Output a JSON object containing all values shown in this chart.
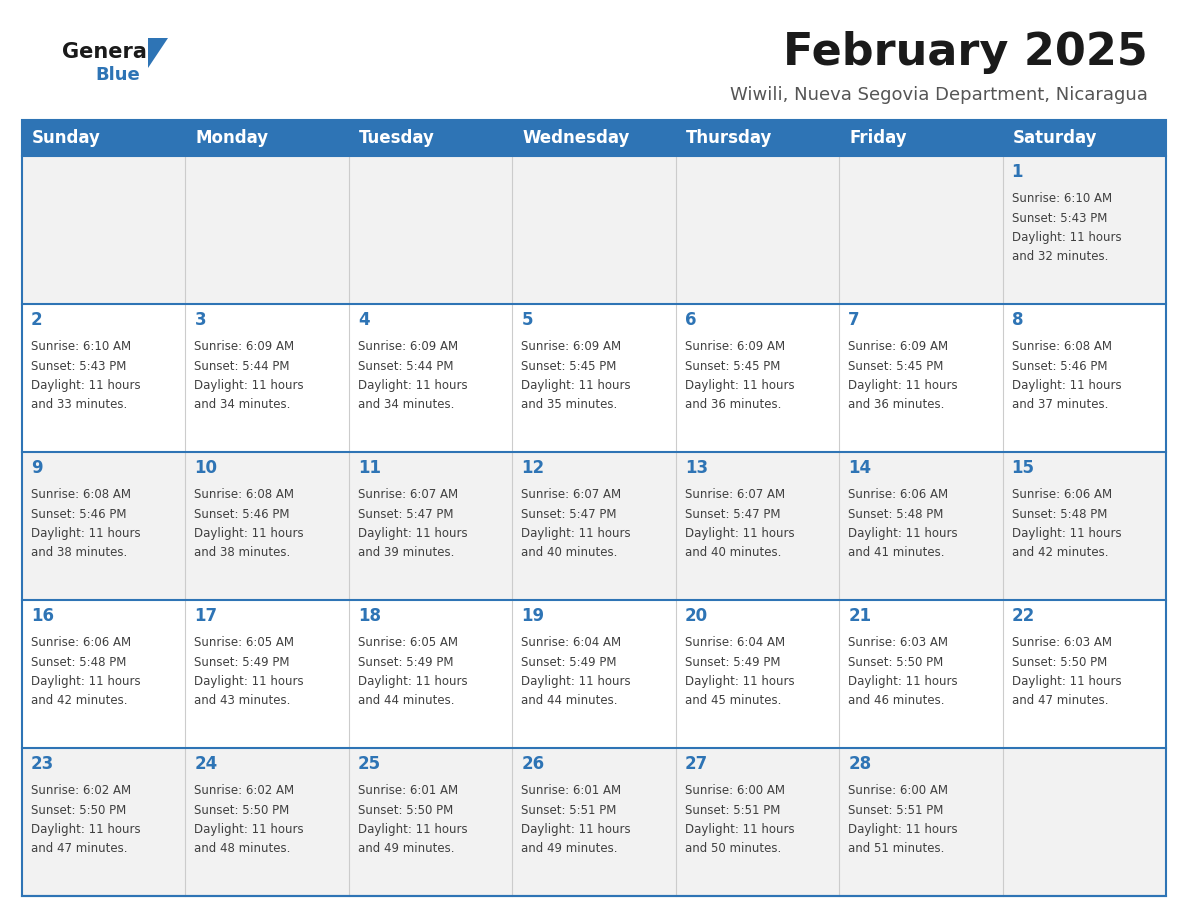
{
  "title": "February 2025",
  "subtitle": "Wiwili, Nueva Segovia Department, Nicaragua",
  "days_of_week": [
    "Sunday",
    "Monday",
    "Tuesday",
    "Wednesday",
    "Thursday",
    "Friday",
    "Saturday"
  ],
  "header_bg": "#2E74B5",
  "header_text_color": "#FFFFFF",
  "row_bg_odd": "#F2F2F2",
  "row_bg_even": "#FFFFFF",
  "day_num_color": "#2E74B5",
  "text_color": "#404040",
  "divider_color": "#2E74B5",
  "logo_general_color": "#1A1A1A",
  "logo_blue_color": "#2E74B5",
  "title_color": "#1A1A1A",
  "subtitle_color": "#555555",
  "calendar_data": [
    [
      null,
      null,
      null,
      null,
      null,
      null,
      {
        "day": 1,
        "sunrise": "6:10 AM",
        "sunset": "5:43 PM",
        "daylight": "11 hours and 32 minutes."
      }
    ],
    [
      {
        "day": 2,
        "sunrise": "6:10 AM",
        "sunset": "5:43 PM",
        "daylight": "11 hours and 33 minutes."
      },
      {
        "day": 3,
        "sunrise": "6:09 AM",
        "sunset": "5:44 PM",
        "daylight": "11 hours and 34 minutes."
      },
      {
        "day": 4,
        "sunrise": "6:09 AM",
        "sunset": "5:44 PM",
        "daylight": "11 hours and 34 minutes."
      },
      {
        "day": 5,
        "sunrise": "6:09 AM",
        "sunset": "5:45 PM",
        "daylight": "11 hours and 35 minutes."
      },
      {
        "day": 6,
        "sunrise": "6:09 AM",
        "sunset": "5:45 PM",
        "daylight": "11 hours and 36 minutes."
      },
      {
        "day": 7,
        "sunrise": "6:09 AM",
        "sunset": "5:45 PM",
        "daylight": "11 hours and 36 minutes."
      },
      {
        "day": 8,
        "sunrise": "6:08 AM",
        "sunset": "5:46 PM",
        "daylight": "11 hours and 37 minutes."
      }
    ],
    [
      {
        "day": 9,
        "sunrise": "6:08 AM",
        "sunset": "5:46 PM",
        "daylight": "11 hours and 38 minutes."
      },
      {
        "day": 10,
        "sunrise": "6:08 AM",
        "sunset": "5:46 PM",
        "daylight": "11 hours and 38 minutes."
      },
      {
        "day": 11,
        "sunrise": "6:07 AM",
        "sunset": "5:47 PM",
        "daylight": "11 hours and 39 minutes."
      },
      {
        "day": 12,
        "sunrise": "6:07 AM",
        "sunset": "5:47 PM",
        "daylight": "11 hours and 40 minutes."
      },
      {
        "day": 13,
        "sunrise": "6:07 AM",
        "sunset": "5:47 PM",
        "daylight": "11 hours and 40 minutes."
      },
      {
        "day": 14,
        "sunrise": "6:06 AM",
        "sunset": "5:48 PM",
        "daylight": "11 hours and 41 minutes."
      },
      {
        "day": 15,
        "sunrise": "6:06 AM",
        "sunset": "5:48 PM",
        "daylight": "11 hours and 42 minutes."
      }
    ],
    [
      {
        "day": 16,
        "sunrise": "6:06 AM",
        "sunset": "5:48 PM",
        "daylight": "11 hours and 42 minutes."
      },
      {
        "day": 17,
        "sunrise": "6:05 AM",
        "sunset": "5:49 PM",
        "daylight": "11 hours and 43 minutes."
      },
      {
        "day": 18,
        "sunrise": "6:05 AM",
        "sunset": "5:49 PM",
        "daylight": "11 hours and 44 minutes."
      },
      {
        "day": 19,
        "sunrise": "6:04 AM",
        "sunset": "5:49 PM",
        "daylight": "11 hours and 44 minutes."
      },
      {
        "day": 20,
        "sunrise": "6:04 AM",
        "sunset": "5:49 PM",
        "daylight": "11 hours and 45 minutes."
      },
      {
        "day": 21,
        "sunrise": "6:03 AM",
        "sunset": "5:50 PM",
        "daylight": "11 hours and 46 minutes."
      },
      {
        "day": 22,
        "sunrise": "6:03 AM",
        "sunset": "5:50 PM",
        "daylight": "11 hours and 47 minutes."
      }
    ],
    [
      {
        "day": 23,
        "sunrise": "6:02 AM",
        "sunset": "5:50 PM",
        "daylight": "11 hours and 47 minutes."
      },
      {
        "day": 24,
        "sunrise": "6:02 AM",
        "sunset": "5:50 PM",
        "daylight": "11 hours and 48 minutes."
      },
      {
        "day": 25,
        "sunrise": "6:01 AM",
        "sunset": "5:50 PM",
        "daylight": "11 hours and 49 minutes."
      },
      {
        "day": 26,
        "sunrise": "6:01 AM",
        "sunset": "5:51 PM",
        "daylight": "11 hours and 49 minutes."
      },
      {
        "day": 27,
        "sunrise": "6:00 AM",
        "sunset": "5:51 PM",
        "daylight": "11 hours and 50 minutes."
      },
      {
        "day": 28,
        "sunrise": "6:00 AM",
        "sunset": "5:51 PM",
        "daylight": "11 hours and 51 minutes."
      },
      null
    ]
  ]
}
